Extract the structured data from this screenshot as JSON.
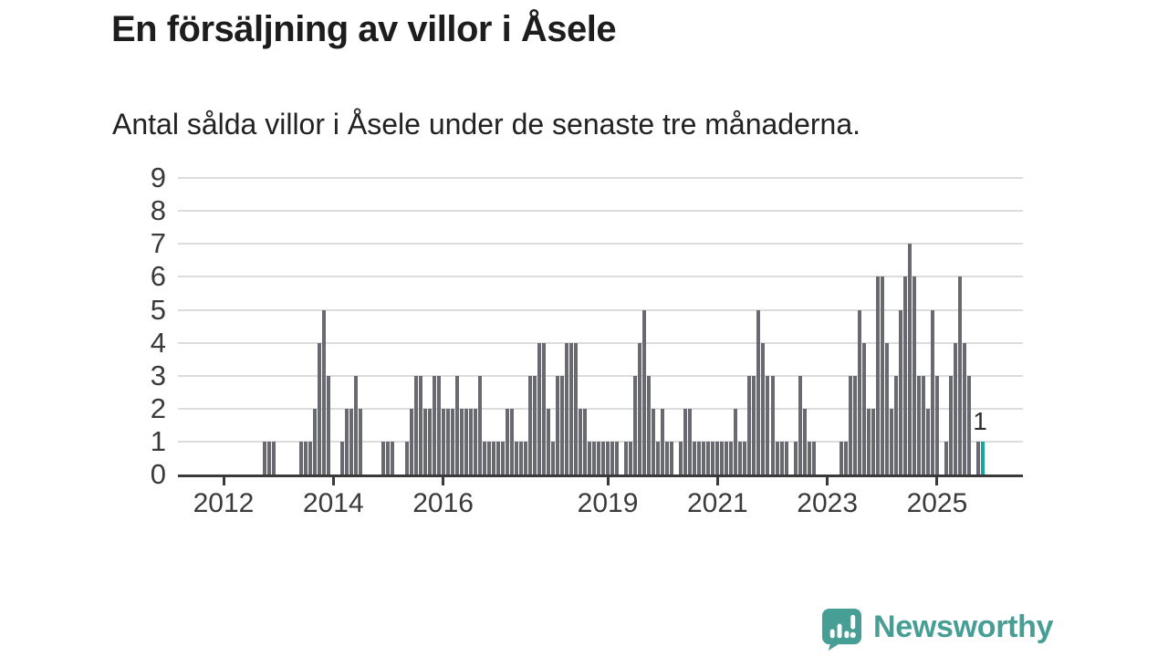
{
  "header": {
    "title": "En försäljning av villor i Åsele",
    "subtitle": "Antal sålda villor i Åsele under de senaste tre månaderna."
  },
  "chart_data": {
    "type": "bar",
    "title": "En försäljning av villor i Åsele",
    "subtitle": "Antal sålda villor i Åsele under de senaste tre månaderna.",
    "ylabel": "",
    "xlabel": "",
    "ylim": [
      0,
      9
    ],
    "y_ticks": [
      0,
      1,
      2,
      3,
      4,
      5,
      6,
      7,
      8,
      9
    ],
    "x_tick_years": [
      2012,
      2014,
      2016,
      2019,
      2021,
      2023,
      2025
    ],
    "grid": "horizontal",
    "legend": "none",
    "series": {
      "name": "Antal sålda villor, rullande tre månader",
      "frequency": "monthly",
      "start": "2011-01",
      "end": "2025-11",
      "values": [
        0,
        0,
        0,
        0,
        0,
        0,
        0,
        0,
        0,
        0,
        0,
        0,
        0,
        0,
        0,
        0,
        0,
        0,
        0,
        0,
        0,
        1,
        1,
        1,
        0,
        0,
        0,
        0,
        0,
        1,
        1,
        1,
        2,
        4,
        5,
        3,
        0,
        0,
        1,
        2,
        2,
        3,
        2,
        0,
        0,
        0,
        0,
        1,
        1,
        1,
        0,
        0,
        1,
        2,
        3,
        3,
        2,
        2,
        3,
        3,
        2,
        2,
        2,
        3,
        2,
        2,
        2,
        2,
        3,
        1,
        1,
        1,
        1,
        1,
        2,
        2,
        1,
        1,
        1,
        3,
        3,
        4,
        4,
        2,
        1,
        3,
        3,
        4,
        4,
        4,
        2,
        2,
        1,
        1,
        1,
        1,
        1,
        1,
        1,
        0,
        1,
        1,
        3,
        4,
        5,
        3,
        2,
        1,
        2,
        1,
        1,
        0,
        1,
        2,
        2,
        1,
        1,
        1,
        1,
        1,
        1,
        1,
        1,
        1,
        2,
        1,
        1,
        3,
        3,
        5,
        4,
        3,
        3,
        1,
        1,
        1,
        0,
        1,
        3,
        2,
        1,
        1,
        0,
        0,
        0,
        0,
        0,
        1,
        1,
        3,
        3,
        5,
        4,
        2,
        2,
        6,
        6,
        4,
        2,
        3,
        5,
        6,
        7,
        6,
        3,
        3,
        2,
        5,
        3,
        0,
        1,
        3,
        4,
        6,
        4,
        3,
        0,
        1,
        1
      ]
    },
    "highlight": {
      "month": "2025-11",
      "value": 1,
      "label": "1"
    },
    "colors": {
      "bar": "#696971",
      "highlight": "#12a79f",
      "gridline": "#dcdcdc",
      "axis": "#3a3a3a",
      "tick_text": "#3a3a3a",
      "title_text": "#1d1d1d",
      "brand": "#479e95"
    }
  },
  "footer": {
    "brand": "Newsworthy"
  }
}
